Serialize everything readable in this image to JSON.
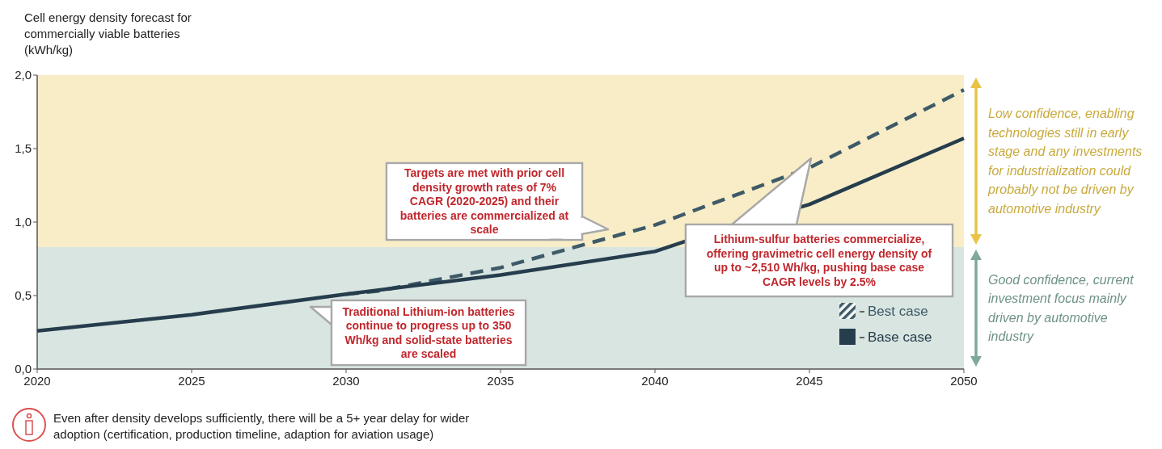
{
  "chart_data": {
    "type": "line",
    "ylabel": "Cell energy density forecast for commercially viable batteries (kWh/kg)",
    "xlim": [
      2020,
      2050
    ],
    "xticks": [
      2020,
      2025,
      2030,
      2035,
      2040,
      2045,
      2050
    ],
    "ylim": [
      0,
      2
    ],
    "yticks": [
      {
        "value": 0,
        "label": "0,0"
      },
      {
        "value": 0.5,
        "label": "0,5"
      },
      {
        "value": 1,
        "label": "1,0"
      },
      {
        "value": 1.5,
        "label": "1,5"
      },
      {
        "value": 2,
        "label": "2,0"
      }
    ],
    "grid": false,
    "legend": "bottom right",
    "marker": "none",
    "series": [
      {
        "name": "Best case",
        "color": "#3e5a68",
        "line_style": "dashed",
        "x": [
          2030,
          2031,
          2035,
          2040,
          2045,
          2050
        ],
        "values": [
          0.51,
          0.53,
          0.69,
          0.98,
          1.37,
          1.9
        ]
      },
      {
        "name": "Base case",
        "color": "#263d4d",
        "line_style": "solid",
        "x": [
          2020,
          2025,
          2030,
          2035,
          2040,
          2041,
          2045,
          2050
        ],
        "values": [
          0.26,
          0.37,
          0.51,
          0.64,
          0.8,
          0.87,
          1.12,
          1.57
        ]
      }
    ],
    "bands": [
      {
        "axis": "y",
        "from": 0,
        "to": 0.83,
        "label": "Good confidence, current investment focus mainly driven by automotive industry",
        "color": "#7faa98"
      },
      {
        "axis": "y",
        "from": 0.83,
        "to": 2,
        "label": "Low confidence, enabling technologies still in early stage and any investments for industrialization could probably not be driven by automotive industry",
        "color": "#e8c446"
      }
    ],
    "annotations": [
      "Targets are met with prior cell density growth rates of 7% CAGR (2020-2025) and their batteries are commercialized at scale",
      "Traditional Lithium-ion batteries continue to progress up to 350 Wh/kg and solid-state batteries are scaled",
      "Lithium-sulfur batteries commercialize, offering gravimetric cell energy density of up to ~2,510 Wh/kg, pushing base case CAGR levels by 2.5%",
      "Even after density develops sufficiently, there will be a 5+ year delay for wider adoption (certification, production timeline, adaption for aviation usage)"
    ]
  }
}
